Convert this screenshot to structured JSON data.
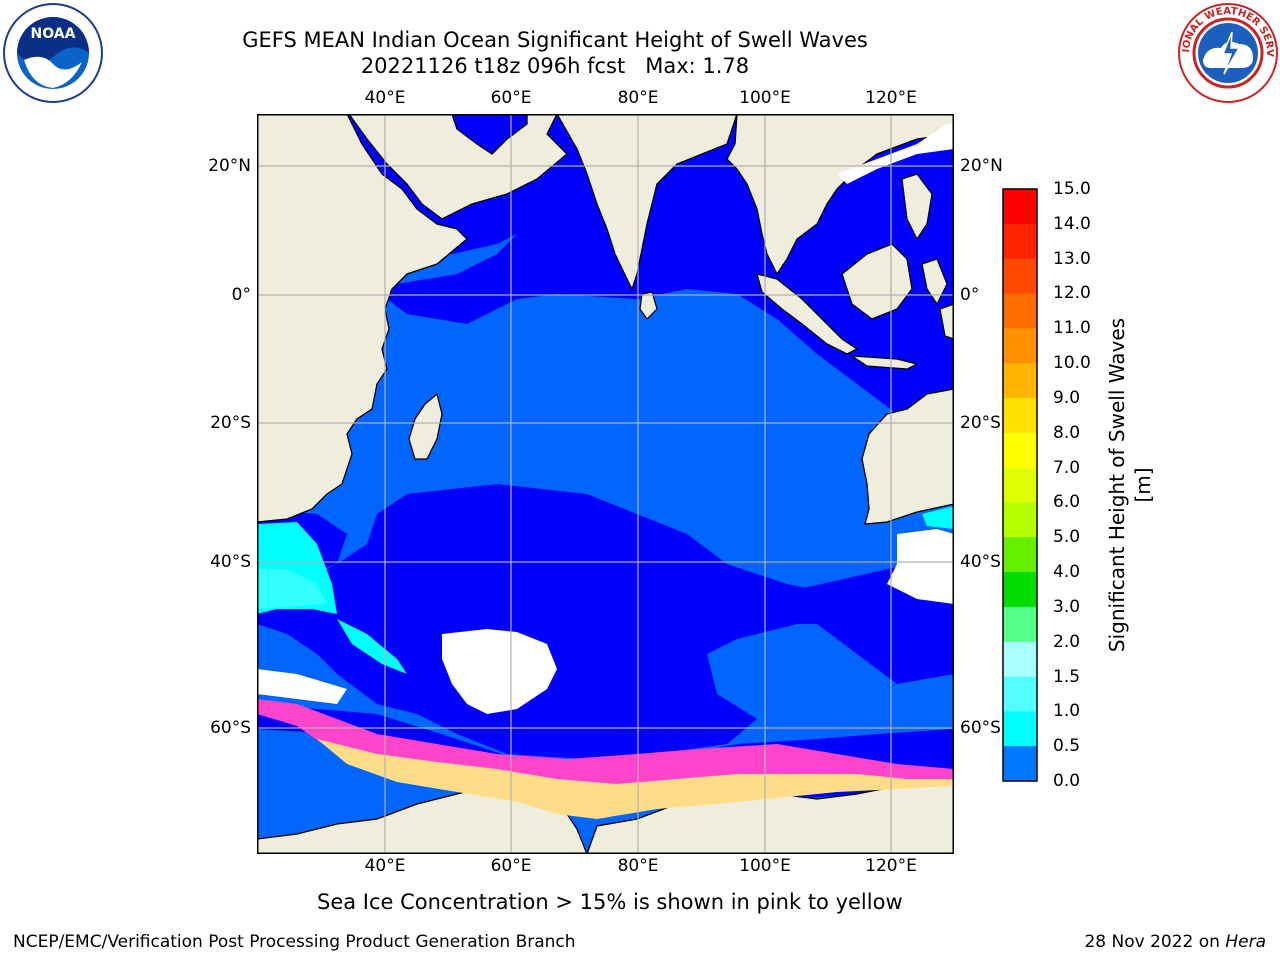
{
  "header": {
    "title_line1": "GEFS MEAN Indian Ocean Significant Height of Swell Waves",
    "title_line2": "20221126 t18z 096h fcst   Max: 1.78",
    "left_logo": "NOAA",
    "right_logo": "NATIONAL WEATHER SERVICE"
  },
  "map": {
    "lon_ticks": [
      "40°E",
      "60°E",
      "80°E",
      "100°E",
      "120°E"
    ],
    "lat_ticks_left": [
      "20°N",
      "0°",
      "20°S",
      "40°S",
      "60°S"
    ],
    "lat_ticks_right": [
      "20°N",
      "0°",
      "20°S",
      "40°S",
      "60°S"
    ],
    "colors": {
      "land": "#efeedd",
      "ice_free_white": "#ffffff",
      "swell_0_0.5": "#0000ff",
      "swell_0.5_1.0": "#0066ff",
      "swell_1.0_1.5": "#00ddff",
      "swell_1.5_2.0": "#33ffff",
      "sea_ice_pink": "#ff44cc",
      "sea_ice_yellow": "#ffdd88",
      "grid": "#b0b0b0"
    }
  },
  "colorbar": {
    "title": "Significant Height of Swell Waves [m]",
    "ticks": [
      "15.0",
      "14.0",
      "13.0",
      "12.0",
      "11.0",
      "10.0",
      "9.0",
      "8.0",
      "7.0",
      "6.0",
      "5.0",
      "4.0",
      "3.0",
      "2.0",
      "1.5",
      "1.0",
      "0.5",
      "0.0"
    ],
    "colors": [
      "#ff0000",
      "#ff2400",
      "#ff4800",
      "#ff6c00",
      "#ff9000",
      "#ffb400",
      "#ffe000",
      "#ffff00",
      "#e0ff00",
      "#b4ff00",
      "#66ee00",
      "#00dd00",
      "#55ff88",
      "#aaffff",
      "#55ffff",
      "#00ffff",
      "#0077ff",
      "#0000ff"
    ]
  },
  "caption": "Sea Ice Concentration > 15% is shown in pink to yellow",
  "footer": {
    "left": "NCEP/EMC/Verification Post Processing Product Generation Branch",
    "right_date": "28 Nov 2022 on ",
    "right_machine": "Hera"
  }
}
